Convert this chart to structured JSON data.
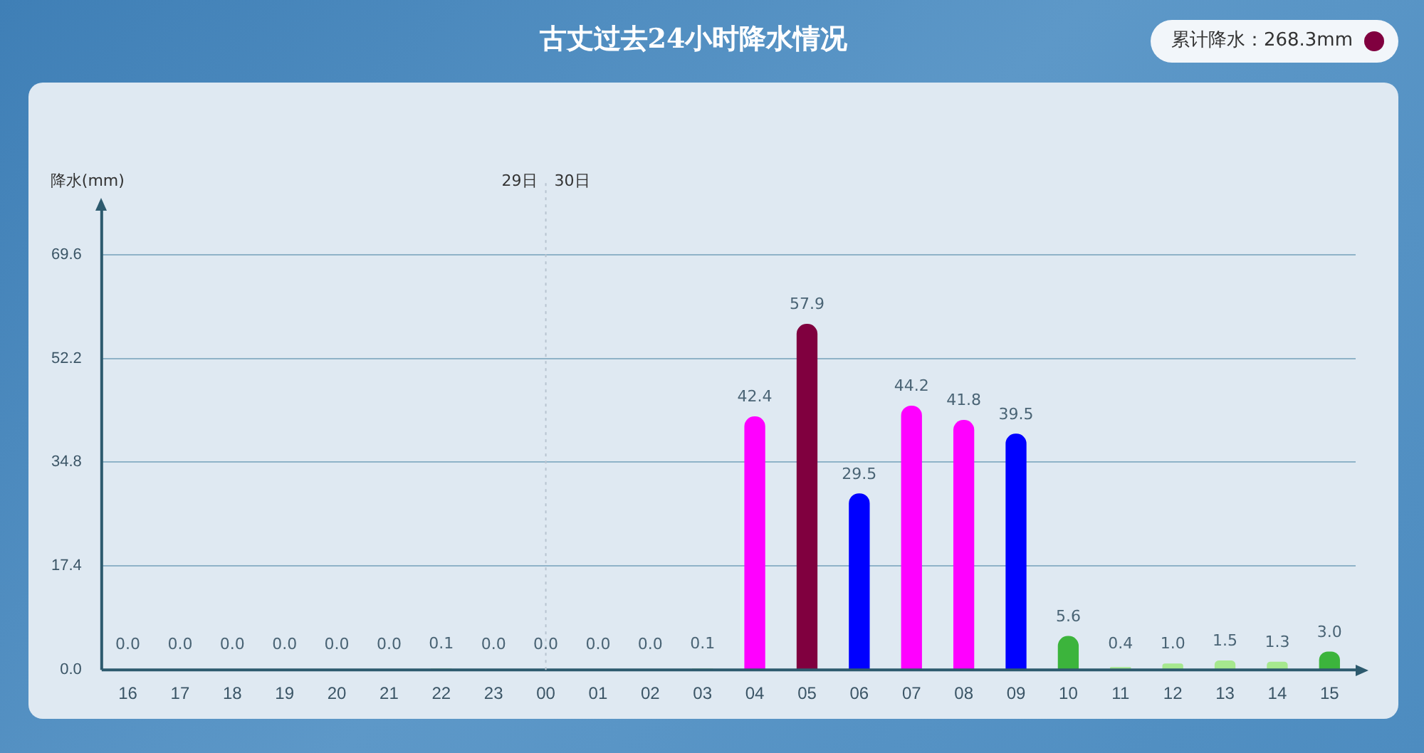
{
  "chart_data": {
    "type": "bar",
    "title": "古丈过去24小时降水情况",
    "ylabel": "降水(mm)",
    "categories": [
      "16",
      "17",
      "18",
      "19",
      "20",
      "21",
      "22",
      "23",
      "00",
      "01",
      "02",
      "03",
      "04",
      "05",
      "06",
      "07",
      "08",
      "09",
      "10",
      "11",
      "12",
      "13",
      "14",
      "15"
    ],
    "values": [
      0,
      0,
      0,
      0,
      0,
      0,
      0.1,
      0,
      0,
      0,
      0,
      0.1,
      42.4,
      57.9,
      29.5,
      44.2,
      41.8,
      39.5,
      5.6,
      0.4,
      1.0,
      1.5,
      1.3,
      3.0
    ],
    "value_labels": [
      "0.0",
      "0.0",
      "0.0",
      "0.0",
      "0.0",
      "0.0",
      "0.1",
      "0.0",
      "0.0",
      "0.0",
      "0.0",
      "0.1",
      "42.4",
      "57.9",
      "29.5",
      "44.2",
      "41.8",
      "39.5",
      "5.6",
      "0.4",
      "1.0",
      "1.5",
      "1.3",
      "3.0"
    ],
    "colors": [
      "#ffffff",
      "#ffffff",
      "#ffffff",
      "#ffffff",
      "#ffffff",
      "#ffffff",
      "#9be27f",
      "#ffffff",
      "#ffffff",
      "#ffffff",
      "#ffffff",
      "#9be27f",
      "#ff00ff",
      "#80003f",
      "#0000ff",
      "#ff00ff",
      "#ff00ff",
      "#0000ff",
      "#3cb43c",
      "#a6e88e",
      "#a6e88e",
      "#a6e88e",
      "#a6e88e",
      "#3cb43c"
    ],
    "ylim": [
      0,
      77
    ],
    "yticks": [
      {
        "value": 0,
        "label": "0.0"
      },
      17.4,
      34.8,
      52.2,
      69.6
    ],
    "grid": "y",
    "legend": false,
    "ref_lines": [
      {
        "axis": "x",
        "value": "00",
        "line_style": "dotted",
        "color": "#b8c4d0"
      }
    ],
    "annotations": [
      "29日",
      "30日",
      "累计降水：268.3mm"
    ]
  }
}
